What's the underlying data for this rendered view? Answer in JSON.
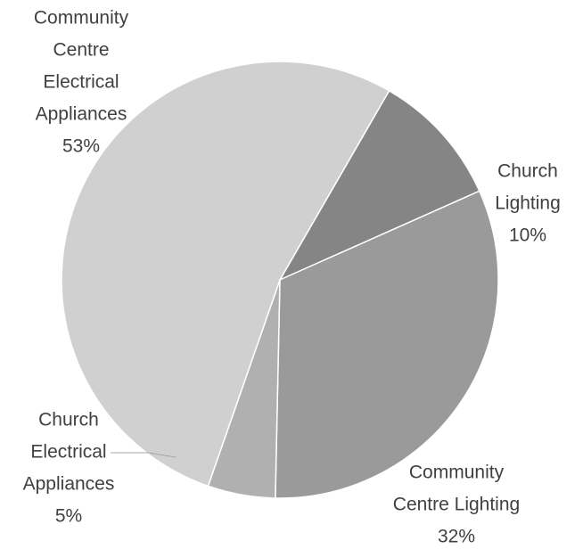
{
  "chart_data": {
    "type": "pie",
    "title": "",
    "start_angle_deg": 30,
    "direction": "clockwise",
    "slices": [
      {
        "name_lines": [
          "Church",
          "Lighting"
        ],
        "percent_label": "10%",
        "value": 10,
        "color": "#858585"
      },
      {
        "name_lines": [
          "Community",
          "Centre Lighting"
        ],
        "percent_label": "32%",
        "value": 32,
        "color": "#9a9a9a"
      },
      {
        "name_lines": [
          "Church",
          "Electrical",
          "Appliances"
        ],
        "percent_label": "5%",
        "value": 5,
        "color": "#b0b0b0"
      },
      {
        "name_lines": [
          "Community",
          "Centre",
          "Electrical",
          "Appliances"
        ],
        "percent_label": "53%",
        "value": 53,
        "color": "#d0d0d0"
      }
    ],
    "legend": "none",
    "data_labels": "outside"
  }
}
